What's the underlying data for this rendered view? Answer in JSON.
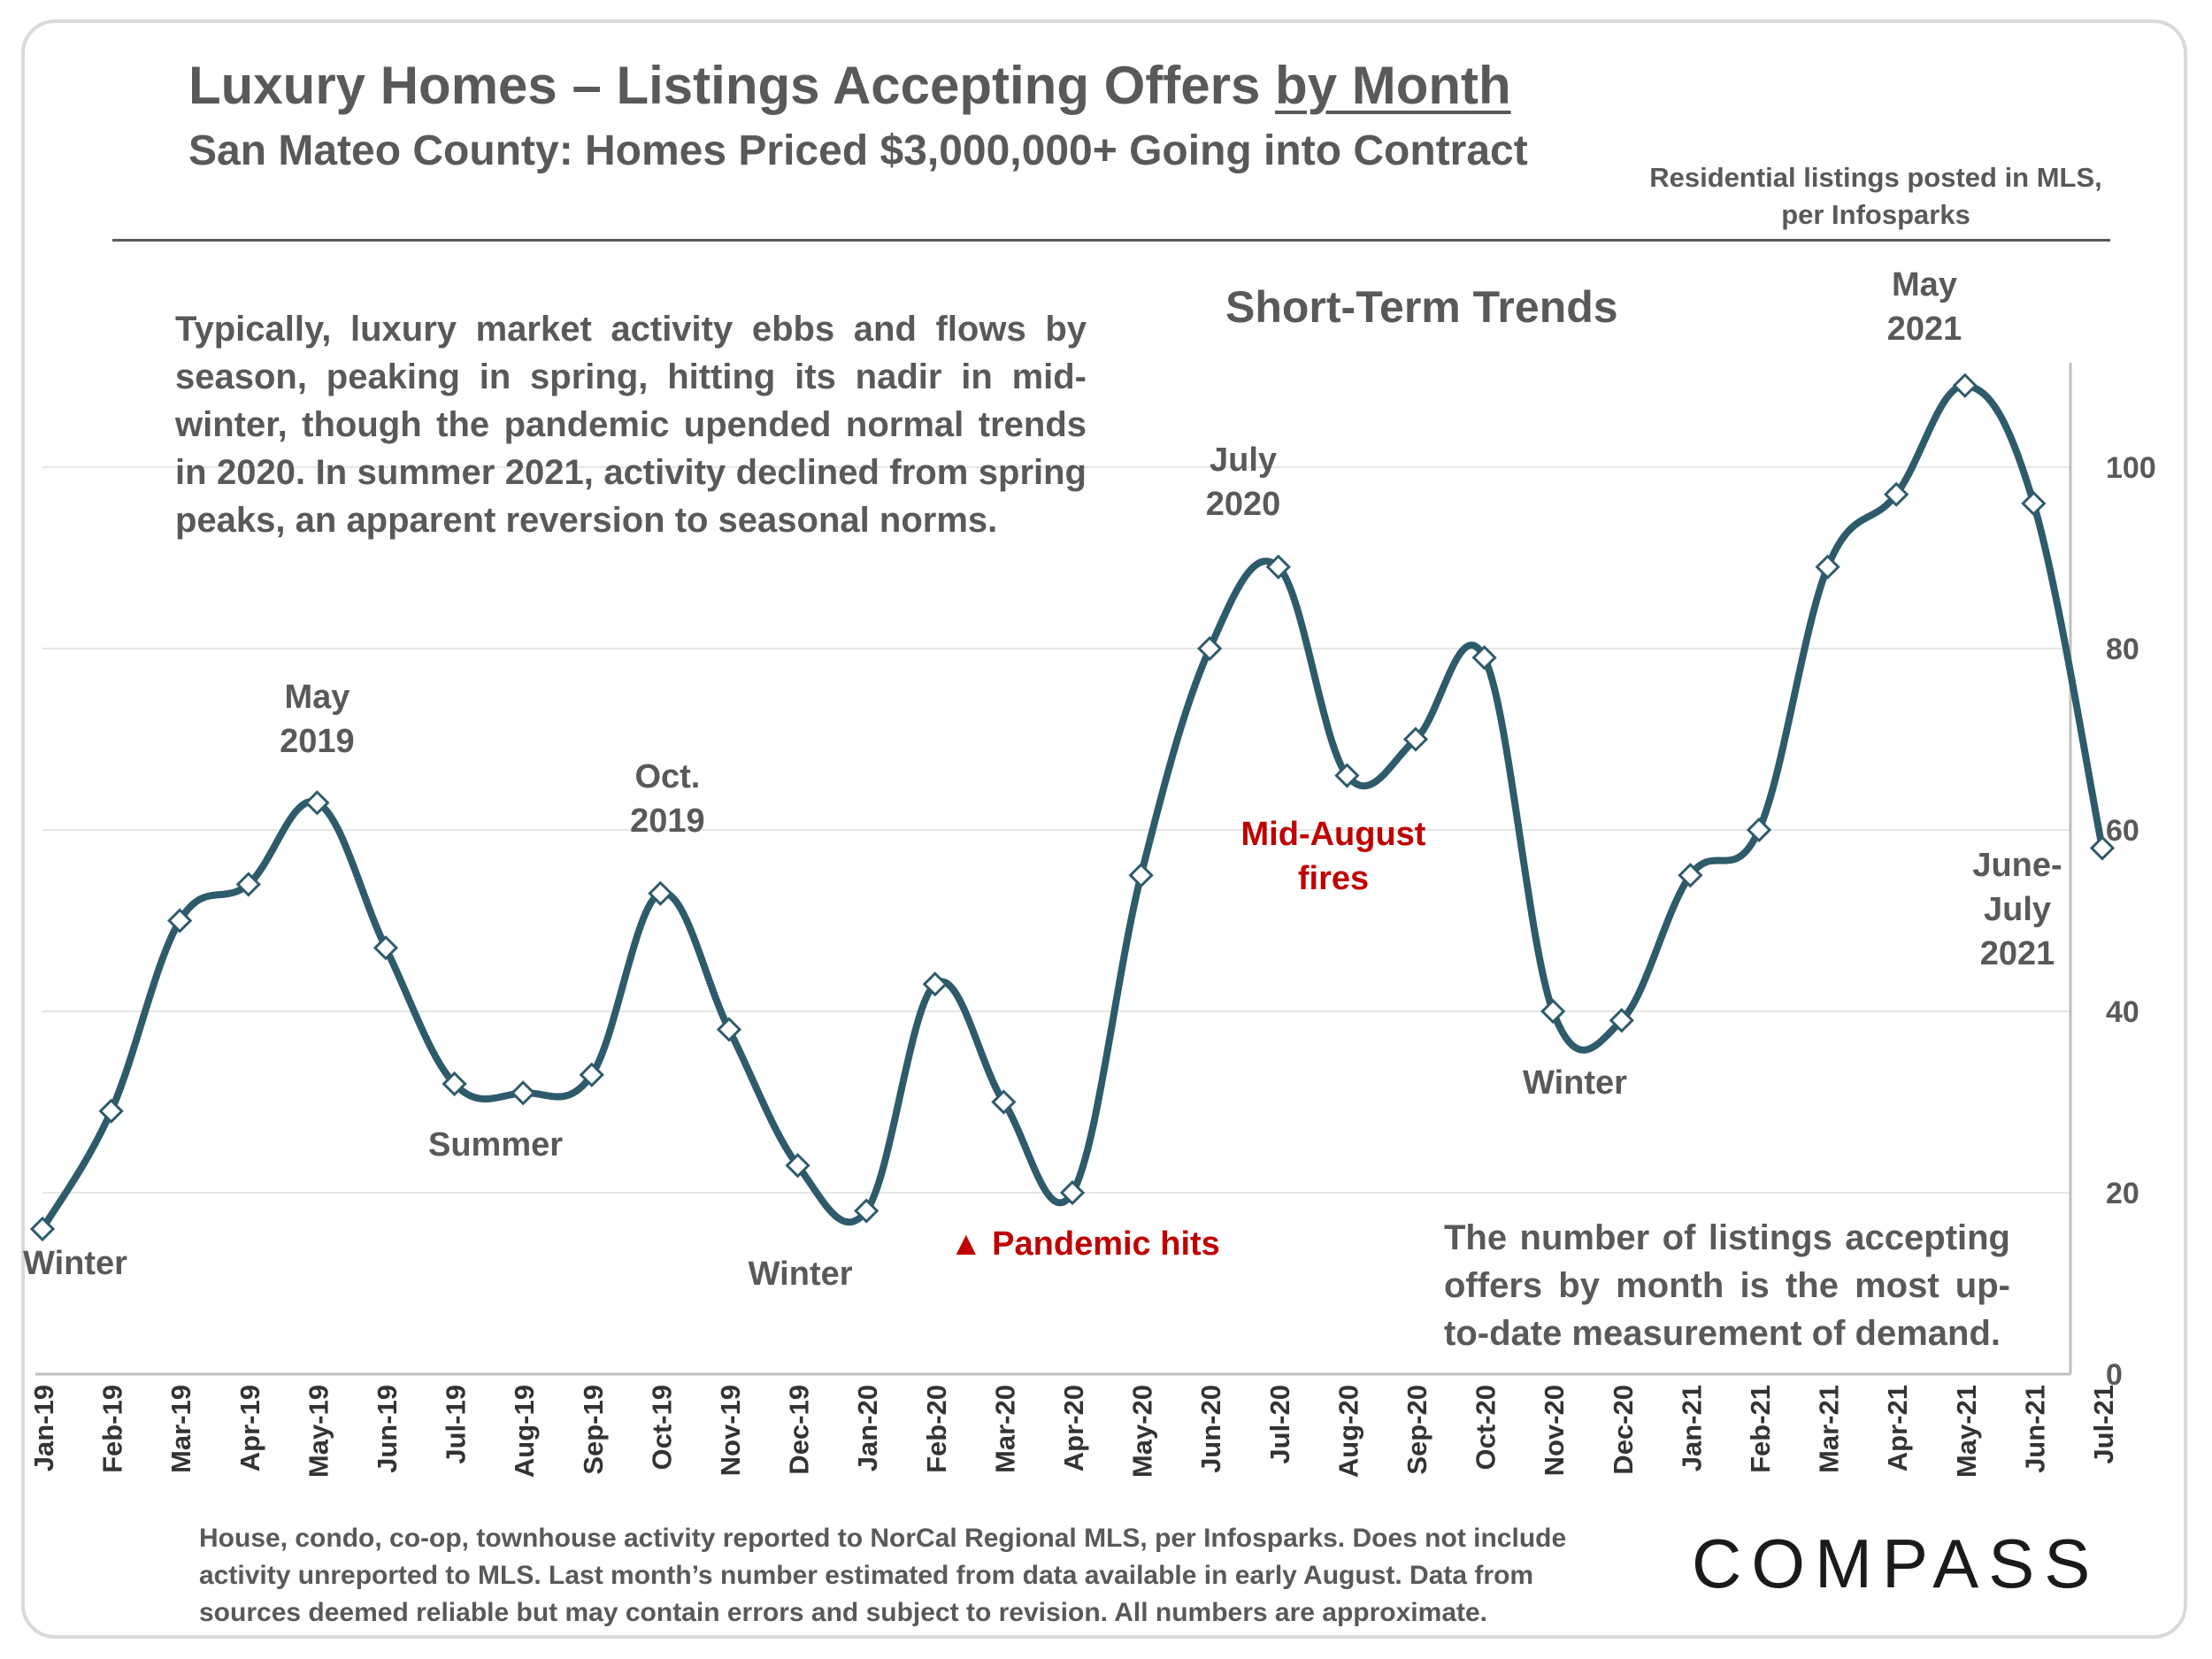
{
  "title_main": "Luxury Homes – Listings Accepting Offers ",
  "title_emph": "by Month",
  "subtitle": "San Mateo County: Homes Priced $3,000,000+ Going into Contract",
  "source_note": "Residential listings posted in MLS, per Infosparks",
  "section_title": "Short-Term Trends",
  "description": "Typically, luxury market activity ebbs and flows by season, peaking in spring, hitting its nadir in mid-winter, though the pandemic upended normal trends in 2020. In summer 2021, activity declined from spring peaks, an apparent reversion to seasonal norms.",
  "side_note": "The number of listings accepting offers by month is the most up-to-date measurement of demand.",
  "footer": "House, condo, co-op, townhouse activity reported to NorCal Regional MLS, per Infosparks. Does not include activity unreported to MLS. Last month’s number estimated from data available in early August. Data from sources deemed reliable but may contain errors and subject to revision.  All numbers are approximate.",
  "logo": "COMPASS",
  "colors": {
    "line": "#2e5b6b",
    "marker_fill": "#ffffff",
    "text": "#595959",
    "highlight": "#c00000",
    "grid": "#e6e6e6"
  },
  "chart_data": {
    "type": "line",
    "categories": [
      "Jan-19",
      "Feb-19",
      "Mar-19",
      "Apr-19",
      "May-19",
      "Jun-19",
      "Jul-19",
      "Aug-19",
      "Sep-19",
      "Oct-19",
      "Nov-19",
      "Dec-19",
      "Jan-20",
      "Feb-20",
      "Mar-20",
      "Apr-20",
      "May-20",
      "Jun-20",
      "Jul-20",
      "Aug-20",
      "Sep-20",
      "Oct-20",
      "Nov-20",
      "Dec-20",
      "Jan-21",
      "Feb-21",
      "Mar-21",
      "Apr-21",
      "May-21",
      "Jun-21",
      "Jul-21"
    ],
    "values": [
      16,
      29,
      50,
      54,
      63,
      47,
      32,
      31,
      33,
      53,
      38,
      23,
      18,
      43,
      30,
      20,
      55,
      80,
      89,
      66,
      70,
      79,
      40,
      39,
      55,
      60,
      89,
      97,
      109,
      96,
      58
    ],
    "y_ticks": [
      "0",
      "20",
      "40",
      "60",
      "80",
      "100"
    ],
    "ylim": [
      0,
      112
    ],
    "y_axis_side": "right",
    "grid": true,
    "marker": "diamond",
    "line_smooth": true,
    "annotations": [
      {
        "lines": [
          "Winter"
        ],
        "at": "Jan-19",
        "color": "text"
      },
      {
        "lines": [
          "May",
          "2019"
        ],
        "at": "May-19",
        "color": "text"
      },
      {
        "lines": [
          "Summer"
        ],
        "at": "Aug-19",
        "color": "text"
      },
      {
        "lines": [
          "Oct.",
          "2019"
        ],
        "at": "Oct-19",
        "color": "text"
      },
      {
        "lines": [
          "Winter"
        ],
        "at": "Dec-19",
        "color": "text"
      },
      {
        "lines": [
          "▲ Pandemic hits"
        ],
        "at": "Mar-20",
        "color": "highlight"
      },
      {
        "lines": [
          "July",
          "2020"
        ],
        "at": "Jul-20",
        "color": "text"
      },
      {
        "lines": [
          "Mid-August",
          "fires"
        ],
        "at": "Aug-20",
        "color": "highlight"
      },
      {
        "lines": [
          "Winter"
        ],
        "at": "Dec-20",
        "color": "text"
      },
      {
        "lines": [
          "May",
          "2021"
        ],
        "at": "May-21",
        "color": "text"
      },
      {
        "lines": [
          "June-",
          "July",
          "2021"
        ],
        "at": "Jul-21",
        "color": "text"
      }
    ]
  }
}
